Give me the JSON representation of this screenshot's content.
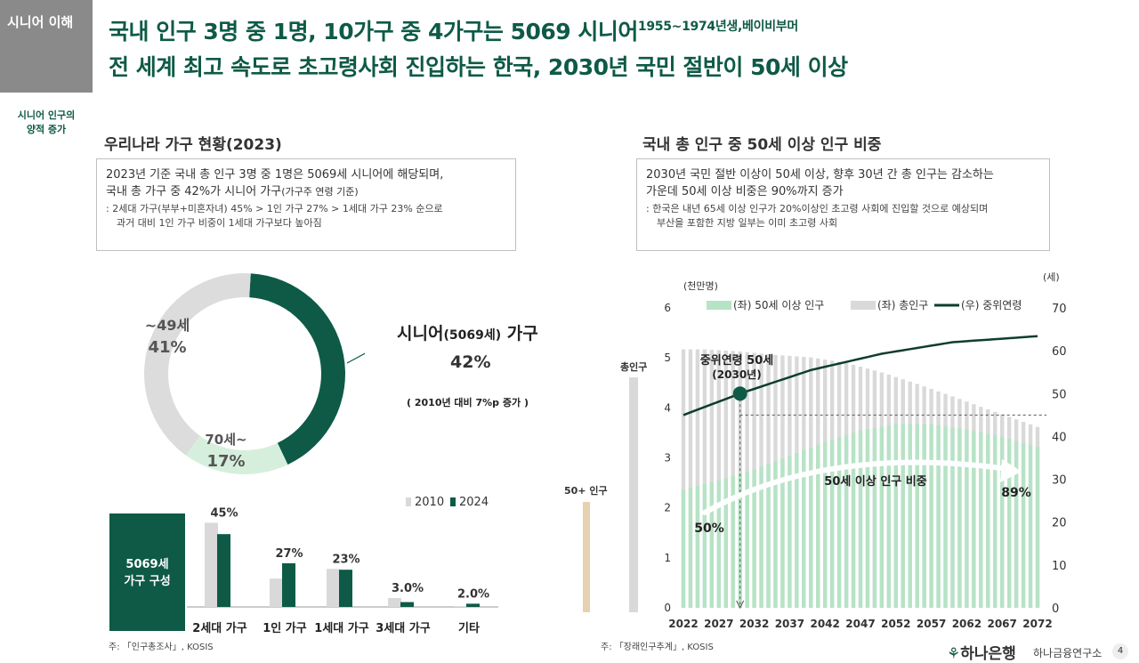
{
  "side_tag": "시니어 이해",
  "side_sub": [
    "시니어 인구의",
    "양적 증가"
  ],
  "headline1_main": "국내 인구 3명 중 1명, 10가구 중 4가구는 5069 시니어",
  "headline1_sup": "1955~1974년생,베이비부머",
  "headline2": "전 세계 최고 속도로 초고령사회 진입하는 한국, 2030년 국민 절반이 50세 이상",
  "left": {
    "title": "우리나라 가구 현황(2023)",
    "box_line1": "2023년 기준 국내 총 인구 3명 중 1명은 5069세 시니어에 해당되며,",
    "box_line2_main": "국내 총 가구 중 42%가 시니어 가구",
    "box_line2_paren": "(가구주 연령 기준)",
    "box_note1": ": 2세대 가구(부부+미혼자녀) 45% > 1인 가구 27% > 1세대 가구 23% 순으로",
    "box_note2": "과거 대비 1인 가구 비중이 1세대 가구보다 높아짐",
    "donut_label_under49": "~49세",
    "donut_pct_under49": "41%",
    "donut_label_70": "70세~",
    "donut_pct_70": "17%",
    "senior_label_main": "시니어",
    "senior_label_paren": "(5069세)",
    "senior_label_tail": " 가구",
    "senior_pct": "42%",
    "senior_note": "( 2010년 대비 7%p 증가 )",
    "dark_box_line1": "5069세",
    "dark_box_line2": "가구 구성",
    "source": "주: 「인구총조사」, KOSIS"
  },
  "right": {
    "title": "국내 총 인구 중 50세 이상 인구 비중",
    "box_line1": "2030년 국민 절반 이상이 50세 이상, 향후 30년 간 총 인구는 감소하는",
    "box_line2": "가운데 50세 이상 비중은 90%까지 증가",
    "box_note1": ": 한국은 내년 65세 이상 인구가 20%이상인 초고령 사회에 진입할 것으로 예상되며",
    "box_note2": "부산을 포함한 지방 일부는 이미 초고령 사회",
    "scale_total": "총인구",
    "scale_50": "50+ 인구",
    "source": "주: 「장래인구추계」, KOSIS"
  },
  "footer": {
    "logo": "하나은행",
    "sub": "하나금융연구소",
    "page": "4"
  },
  "colors": {
    "brand_green": "#0e5a46",
    "light_green": "#b6e3c5",
    "gray": "#d9d9d9",
    "tan": "#e6d2b0"
  },
  "chart_data": [
    {
      "type": "pie",
      "title": "",
      "labels": [
        "~49세",
        "70세~",
        "시니어(5069세) 가구"
      ],
      "values": [
        41,
        17,
        42
      ],
      "colors": [
        "#dcdcdc",
        "#d6efdc",
        "#0e5a46"
      ]
    },
    {
      "type": "bar",
      "title": "",
      "categories": [
        "2세대 가구",
        "1인 가구",
        "1세대 가구",
        "3세대 가구",
        "기타"
      ],
      "series": [
        {
          "name": "2010",
          "values": [
            52,
            17.5,
            23.5,
            5.5,
            0.5
          ],
          "color": "#d9d9d9"
        },
        {
          "name": "2024",
          "values": [
            45,
            27,
            23,
            3.0,
            2.0
          ],
          "color": "#0e5a46"
        }
      ],
      "data_labels": [
        "45%",
        "27%",
        "23%",
        "3.0%",
        "2.0%"
      ],
      "legend": "top-right",
      "ylim": [
        0,
        55
      ]
    },
    {
      "type": "bar",
      "title": "",
      "subtype": "overlapping bar + line (dual axis)",
      "x_ticks": [
        "2022",
        "2027",
        "2032",
        "2037",
        "2042",
        "2047",
        "2052",
        "2057",
        "2062",
        "2067",
        "2072"
      ],
      "years": [
        2022,
        2072
      ],
      "left_axis": {
        "unit": "(천만명)",
        "ticks": [
          "0",
          "1",
          "2",
          "3",
          "4",
          "5",
          "6"
        ],
        "range": [
          0,
          6
        ]
      },
      "right_axis": {
        "unit": "(세)",
        "ticks": [
          "0",
          "10",
          "20",
          "30",
          "40",
          "50",
          "60",
          "70"
        ],
        "range": [
          0,
          70
        ]
      },
      "legend": [
        "(좌) 50세 이상 인구",
        "(좌) 총인구",
        "(우) 중위연령"
      ],
      "legend_position": "top",
      "series_total": {
        "name": "(좌) 총인구",
        "keyframes": [
          [
            2022,
            5.17
          ],
          [
            2025,
            5.17
          ],
          [
            2030,
            5.13
          ],
          [
            2035,
            5.06
          ],
          [
            2040,
            5.01
          ],
          [
            2045,
            4.9
          ],
          [
            2050,
            4.71
          ],
          [
            2055,
            4.48
          ],
          [
            2060,
            4.23
          ],
          [
            2065,
            3.97
          ],
          [
            2072,
            3.62
          ]
        ]
      },
      "series_50plus": {
        "name": "(좌) 50세 이상 인구",
        "keyframes": [
          [
            2022,
            2.36
          ],
          [
            2027,
            2.55
          ],
          [
            2032,
            2.77
          ],
          [
            2037,
            3.04
          ],
          [
            2042,
            3.32
          ],
          [
            2047,
            3.55
          ],
          [
            2052,
            3.68
          ],
          [
            2057,
            3.67
          ],
          [
            2062,
            3.57
          ],
          [
            2067,
            3.42
          ],
          [
            2072,
            3.22
          ]
        ]
      },
      "series_median_age": {
        "name": "(우) 중위연령",
        "keyframes": [
          [
            2022,
            45.0
          ],
          [
            2030,
            50.0
          ],
          [
            2040,
            55.5
          ],
          [
            2050,
            59.3
          ],
          [
            2060,
            62.0
          ],
          [
            2072,
            63.4
          ]
        ]
      },
      "annotations": {
        "median_point_year": 2030,
        "median_label": "중위연령 50세",
        "median_sublabel": "(2030년)",
        "share_label": "50세 이상 인구 비중",
        "share_start": "50%",
        "share_end": "89%"
      }
    }
  ]
}
